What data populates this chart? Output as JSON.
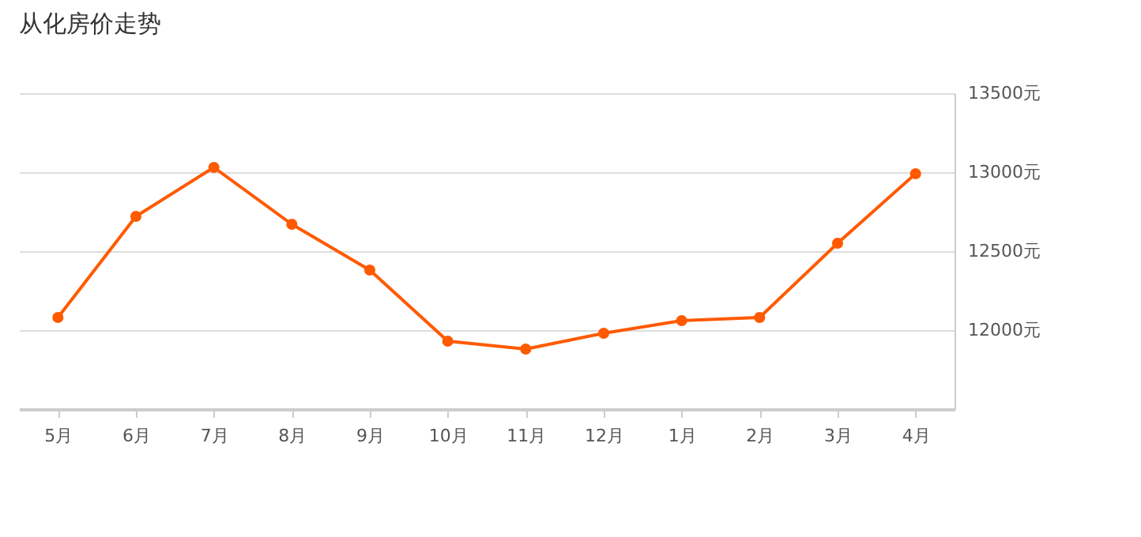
{
  "chart_data": {
    "type": "line",
    "title": "从化房价走势",
    "categories": [
      "5月",
      "6月",
      "7月",
      "8月",
      "9月",
      "10月",
      "11月",
      "12月",
      "1月",
      "2月",
      "3月",
      "4月"
    ],
    "series": [
      {
        "color": "#ff5a00",
        "values": [
          12080,
          12720,
          13030,
          12670,
          12380,
          11930,
          11880,
          11980,
          12060,
          12080,
          12550,
          12990
        ]
      }
    ],
    "ylim": [
      11500,
      13500
    ],
    "yticks": [
      {
        "value": 12000,
        "label": "12000元"
      },
      {
        "value": 12500,
        "label": "12500元"
      },
      {
        "value": 13000,
        "label": "13000元"
      },
      {
        "value": 13500,
        "label": "13500元"
      }
    ],
    "grid": "y",
    "marker": "circle",
    "line_style": "solid"
  }
}
